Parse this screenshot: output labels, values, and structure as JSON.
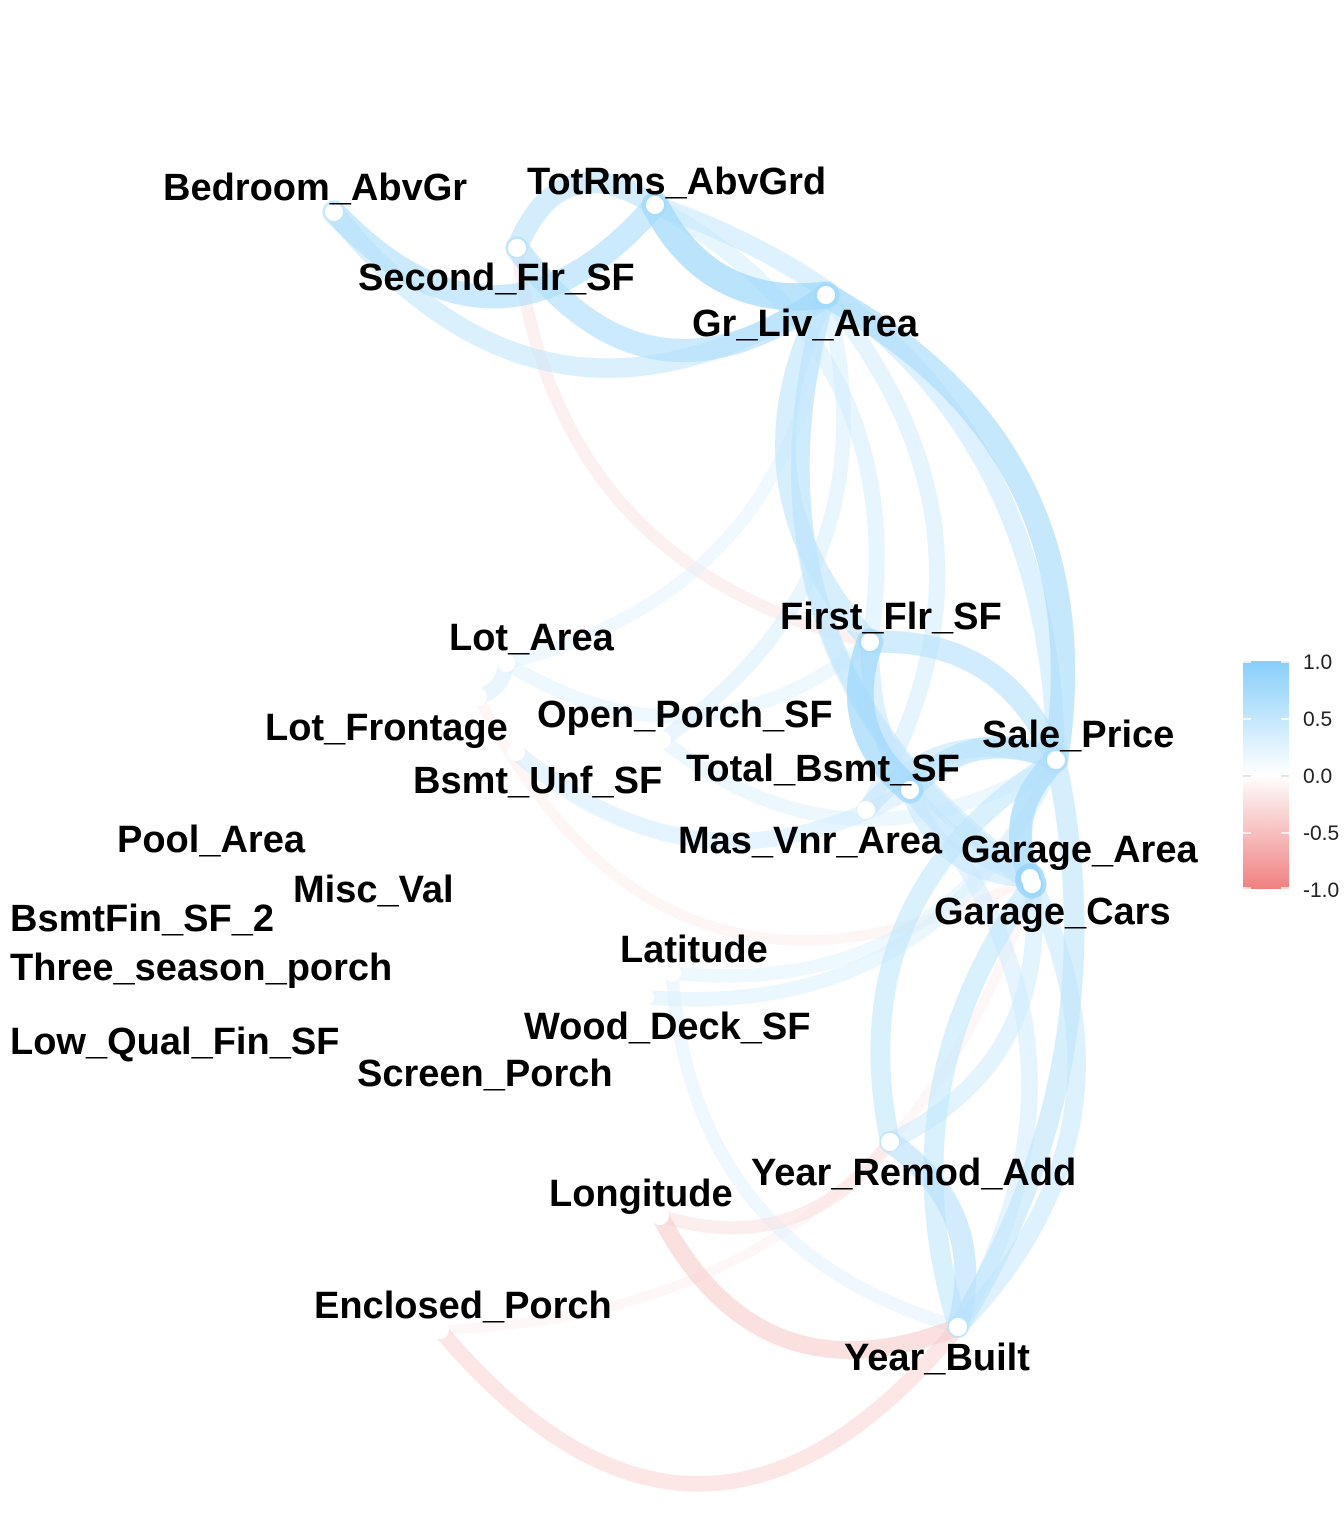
{
  "network": {
    "nodes": [
      {
        "id": "Bedroom_AbvGr",
        "label": "Bedroom_AbvGr"
      },
      {
        "id": "TotRms_AbvGrd",
        "label": "TotRms_AbvGrd"
      },
      {
        "id": "Second_Flr_SF",
        "label": "Second_Flr_SF"
      },
      {
        "id": "Gr_Liv_Area",
        "label": "Gr_Liv_Area"
      },
      {
        "id": "First_Flr_SF",
        "label": "First_Flr_SF"
      },
      {
        "id": "Lot_Area",
        "label": "Lot_Area"
      },
      {
        "id": "Open_Porch_SF",
        "label": "Open_Porch_SF"
      },
      {
        "id": "Lot_Frontage",
        "label": "Lot_Frontage"
      },
      {
        "id": "Sale_Price",
        "label": "Sale_Price"
      },
      {
        "id": "Total_Bsmt_SF",
        "label": "Total_Bsmt_SF"
      },
      {
        "id": "Bsmt_Unf_SF",
        "label": "Bsmt_Unf_SF"
      },
      {
        "id": "Pool_Area",
        "label": "Pool_Area"
      },
      {
        "id": "Mas_Vnr_Area",
        "label": "Mas_Vnr_Area"
      },
      {
        "id": "Garage_Area",
        "label": "Garage_Area"
      },
      {
        "id": "Misc_Val",
        "label": "Misc_Val"
      },
      {
        "id": "BsmtFin_SF_2",
        "label": "BsmtFin_SF_2"
      },
      {
        "id": "Garage_Cars",
        "label": "Garage_Cars"
      },
      {
        "id": "Latitude",
        "label": "Latitude"
      },
      {
        "id": "Three_season_porch",
        "label": "Three_season_porch"
      },
      {
        "id": "Wood_Deck_SF",
        "label": "Wood_Deck_SF"
      },
      {
        "id": "Low_Qual_Fin_SF",
        "label": "Low_Qual_Fin_SF"
      },
      {
        "id": "Screen_Porch",
        "label": "Screen_Porch"
      },
      {
        "id": "Year_Remod_Add",
        "label": "Year_Remod_Add"
      },
      {
        "id": "Longitude",
        "label": "Longitude"
      },
      {
        "id": "Enclosed_Porch",
        "label": "Enclosed_Porch"
      },
      {
        "id": "Year_Built",
        "label": "Year_Built"
      }
    ],
    "edges": [
      {
        "from": "Garage_Area",
        "to": "Garage_Cars",
        "r": 0.89
      },
      {
        "from": "TotRms_AbvGrd",
        "to": "Gr_Liv_Area",
        "r": 0.81
      },
      {
        "from": "First_Flr_SF",
        "to": "Total_Bsmt_SF",
        "r": 0.8
      },
      {
        "from": "Sale_Price",
        "to": "Gr_Liv_Area",
        "r": 0.71
      },
      {
        "from": "Sale_Price",
        "to": "Garage_Cars",
        "r": 0.65
      },
      {
        "from": "Sale_Price",
        "to": "Garage_Area",
        "r": 0.64
      },
      {
        "from": "Sale_Price",
        "to": "Total_Bsmt_SF",
        "r": 0.63
      },
      {
        "from": "Sale_Price",
        "to": "First_Flr_SF",
        "r": 0.62
      },
      {
        "from": "Year_Built",
        "to": "Year_Remod_Add",
        "r": 0.61
      },
      {
        "from": "TotRms_AbvGrd",
        "to": "Bedroom_AbvGr",
        "r": 0.67
      },
      {
        "from": "Gr_Liv_Area",
        "to": "Second_Flr_SF",
        "r": 0.66
      },
      {
        "from": "Year_Built",
        "to": "Garage_Cars",
        "r": 0.54
      },
      {
        "from": "Bedroom_AbvGr",
        "to": "Gr_Liv_Area",
        "r": 0.52
      },
      {
        "from": "Sale_Price",
        "to": "Year_Built",
        "r": 0.56
      },
      {
        "from": "Sale_Price",
        "to": "Year_Remod_Add",
        "r": 0.53
      },
      {
        "from": "Gr_Liv_Area",
        "to": "First_Flr_SF",
        "r": 0.56
      },
      {
        "from": "TotRms_AbvGrd",
        "to": "Second_Flr_SF",
        "r": 0.59
      },
      {
        "from": "Sale_Price",
        "to": "Mas_Vnr_Area",
        "r": 0.51
      },
      {
        "from": "Sale_Price",
        "to": "TotRms_AbvGrd",
        "r": 0.5
      },
      {
        "from": "Gr_Liv_Area",
        "to": "Garage_Area",
        "r": 0.48
      },
      {
        "from": "Gr_Liv_Area",
        "to": "Garage_Cars",
        "r": 0.49
      },
      {
        "from": "Year_Built",
        "to": "Garage_Area",
        "r": 0.48
      },
      {
        "from": "Year_Remod_Add",
        "to": "Garage_Cars",
        "r": 0.43
      },
      {
        "from": "Total_Bsmt_SF",
        "to": "Garage_Area",
        "r": 0.48
      },
      {
        "from": "First_Flr_SF",
        "to": "Garage_Area",
        "r": 0.48
      },
      {
        "from": "Mas_Vnr_Area",
        "to": "Gr_Liv_Area",
        "r": 0.4
      },
      {
        "from": "Year_Built",
        "to": "Total_Bsmt_SF",
        "r": 0.41
      },
      {
        "from": "First_Flr_SF",
        "to": "TotRms_AbvGrd",
        "r": 0.39
      },
      {
        "from": "Lot_Frontage",
        "to": "Lot_Area",
        "r": 0.36
      },
      {
        "from": "Open_Porch_SF",
        "to": "Gr_Liv_Area",
        "r": 0.34
      },
      {
        "from": "Wood_Deck_SF",
        "to": "Sale_Price",
        "r": 0.33
      },
      {
        "from": "Open_Porch_SF",
        "to": "Sale_Price",
        "r": 0.31
      },
      {
        "from": "Latitude",
        "to": "Sale_Price",
        "r": 0.29
      },
      {
        "from": "Latitude",
        "to": "Year_Built",
        "r": 0.28
      },
      {
        "from": "Second_Flr_SF",
        "to": "First_Flr_SF",
        "r": -0.25
      },
      {
        "from": "Enclosed_Porch",
        "to": "Year_Built",
        "r": -0.37
      },
      {
        "from": "Longitude",
        "to": "Year_Built",
        "r": -0.45
      },
      {
        "from": "Longitude",
        "to": "Year_Remod_Add",
        "r": -0.28
      },
      {
        "from": "Lot_Frontage",
        "to": "Garage_Area",
        "r": -0.18
      },
      {
        "from": "Enclosed_Porch",
        "to": "Garage_Cars",
        "r": -0.15
      },
      {
        "from": "Lot_Area",
        "to": "First_Flr_SF",
        "r": 0.3
      },
      {
        "from": "Bsmt_Unf_SF",
        "to": "Total_Bsmt_SF",
        "r": 0.41
      },
      {
        "from": "Lot_Area",
        "to": "Gr_Liv_Area",
        "r": 0.27
      }
    ]
  },
  "legend": {
    "ticks": [
      "1.0",
      "0.5",
      "0.0",
      "-0.5",
      "-1.0"
    ],
    "colors": {
      "positive": "#87CEFA",
      "zero": "#FFFFFF",
      "negative": "#F08080"
    }
  }
}
